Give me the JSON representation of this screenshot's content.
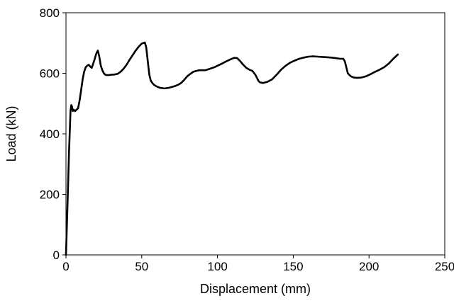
{
  "chart_data": {
    "type": "line",
    "title": "",
    "xlabel": "Displacement (mm)",
    "ylabel": "Load (kN)",
    "xlim": [
      0,
      250
    ],
    "ylim": [
      0,
      800
    ],
    "x_ticks": [
      0,
      50,
      100,
      150,
      200,
      250
    ],
    "y_ticks": [
      0,
      200,
      400,
      600,
      800
    ],
    "grid": false,
    "legend": "none",
    "line_color": "#000000",
    "series": [
      {
        "x": [
          0,
          1,
          2,
          3,
          3.5,
          4,
          4.5,
          5,
          6,
          7,
          8,
          9,
          10,
          11,
          12,
          13,
          14,
          15,
          16,
          17,
          18,
          19,
          20,
          21,
          22,
          23,
          24,
          25,
          26,
          27,
          28,
          30,
          32,
          34,
          36,
          38,
          40,
          42,
          44,
          46,
          48,
          50,
          52,
          53,
          54,
          55,
          56,
          57,
          58,
          60,
          62,
          65,
          68,
          70,
          72,
          74,
          76,
          78,
          80,
          82,
          84,
          86,
          88,
          90,
          92,
          95,
          98,
          100,
          103,
          106,
          109,
          111,
          113,
          115,
          117,
          119,
          121,
          123,
          125,
          127,
          128,
          130,
          133,
          136,
          139,
          142,
          145,
          148,
          151,
          154,
          157,
          160,
          163,
          166,
          169,
          172,
          175,
          178,
          181,
          183,
          184,
          185,
          186,
          188,
          190,
          192,
          195,
          198,
          201,
          204,
          207,
          210,
          213,
          216,
          219
        ],
        "y": [
          0,
          160,
          340,
          475,
          495,
          490,
          475,
          480,
          475,
          480,
          485,
          510,
          545,
          580,
          605,
          620,
          625,
          628,
          622,
          618,
          632,
          648,
          665,
          675,
          655,
          625,
          610,
          600,
          595,
          594,
          594,
          595,
          596,
          598,
          605,
          615,
          628,
          645,
          660,
          675,
          688,
          698,
          702,
          685,
          640,
          595,
          575,
          568,
          562,
          556,
          552,
          550,
          552,
          555,
          558,
          562,
          568,
          578,
          590,
          598,
          605,
          608,
          610,
          610,
          610,
          615,
          620,
          625,
          632,
          640,
          647,
          651,
          650,
          640,
          628,
          618,
          612,
          608,
          595,
          575,
          570,
          568,
          572,
          580,
          595,
          612,
          625,
          635,
          642,
          648,
          652,
          655,
          656,
          655,
          654,
          653,
          652,
          650,
          648,
          648,
          640,
          620,
          600,
          590,
          586,
          585,
          586,
          590,
          597,
          605,
          612,
          620,
          632,
          648,
          662
        ]
      }
    ]
  }
}
